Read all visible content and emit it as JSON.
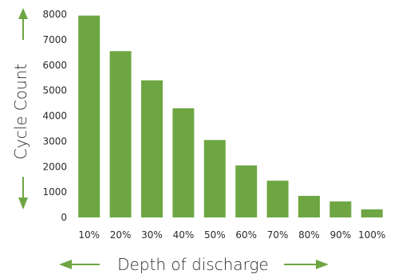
{
  "chart_data": {
    "type": "bar",
    "title": "",
    "xlabel": "Depth of discharge",
    "ylabel": "Cycle Count",
    "categories": [
      "10%",
      "20%",
      "30%",
      "40%",
      "50%",
      "60%",
      "70%",
      "80%",
      "90%",
      "100%"
    ],
    "values": [
      7950,
      6550,
      5400,
      4300,
      3050,
      2050,
      1450,
      850,
      630,
      320
    ],
    "ylim": [
      0,
      8000
    ],
    "yticks": [
      0,
      1000,
      2000,
      3000,
      4000,
      5000,
      6000,
      7000,
      8000
    ],
    "grid": false,
    "bar_color": "#6ea643",
    "arrow_color": "#6ea643",
    "text_color": "#2b2b2b"
  }
}
